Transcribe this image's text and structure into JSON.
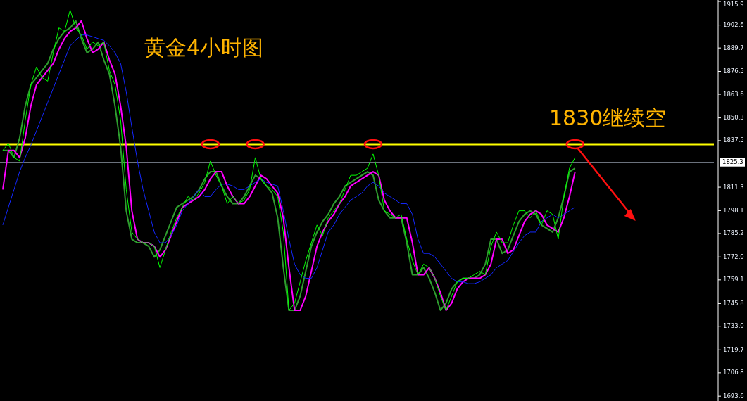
{
  "chart_data": {
    "type": "line",
    "categories": [
      null,
      null,
      null,
      null,
      null,
      null,
      null,
      null,
      null,
      null,
      null,
      null,
      null,
      null,
      null,
      null,
      null,
      null,
      null,
      null,
      null,
      null,
      null,
      null,
      null,
      null,
      null,
      null,
      null,
      null,
      null,
      null,
      null,
      null,
      null,
      null,
      null,
      null,
      null,
      null,
      null,
      null,
      null,
      null,
      null,
      null,
      null,
      null,
      null,
      null,
      null,
      null,
      null,
      null,
      null,
      null,
      null,
      null,
      null,
      null,
      null,
      null,
      null,
      null,
      null,
      null,
      null,
      null,
      null,
      null,
      null,
      null,
      null,
      null,
      null,
      null,
      null,
      null,
      null,
      null,
      null,
      null,
      null,
      null,
      null,
      null,
      null,
      null,
      null,
      null,
      null,
      null,
      null,
      null,
      null,
      null,
      null,
      null,
      null,
      null,
      null,
      null,
      null
    ],
    "series": [
      {
        "color": "#00ff00",
        "values": [
          1832,
          1836,
          1828,
          1826,
          1849,
          1869,
          1879,
          1873,
          1871,
          1887,
          1901,
          1899,
          1911,
          1901,
          1897,
          1889,
          1893,
          1891,
          1893,
          1877,
          1869,
          1849,
          1810,
          1786,
          1782,
          1780,
          1780,
          1778,
          1766,
          1776,
          1786,
          1794,
          1800,
          1806,
          1804,
          1808,
          1814,
          1826,
          1818,
          1812,
          1802,
          1806,
          1802,
          1804,
          1810,
          1828,
          1816,
          1812,
          1810,
          1806,
          1786,
          1742,
          1746,
          1758,
          1770,
          1780,
          1790,
          1784,
          1794,
          1798,
          1802,
          1810,
          1818,
          1818,
          1820,
          1822,
          1830,
          1818,
          1798,
          1796,
          1794,
          1796,
          1782,
          1770,
          1762,
          1768,
          1766,
          1760,
          1750,
          1742,
          1750,
          1758,
          1760,
          1760,
          1762,
          1764,
          1762,
          1778,
          1786,
          1780,
          1780,
          1790,
          1798,
          1798,
          1794,
          1798,
          1790,
          1798,
          1796,
          1782,
          1806,
          1822,
          1828
        ]
      },
      {
        "color": "#2e9e2e",
        "values": [
          1832,
          1832,
          1828,
          1839,
          1857,
          1869,
          1873,
          1877,
          1881,
          1889,
          1895,
          1899,
          1901,
          1905,
          1895,
          1887,
          1889,
          1893,
          1883,
          1875,
          1857,
          1834,
          1798,
          1782,
          1780,
          1780,
          1778,
          1772,
          1776,
          1784,
          1792,
          1800,
          1802,
          1804,
          1806,
          1810,
          1816,
          1820,
          1820,
          1812,
          1806,
          1802,
          1802,
          1806,
          1812,
          1818,
          1816,
          1812,
          1808,
          1794,
          1766,
          1742,
          1742,
          1750,
          1764,
          1778,
          1786,
          1792,
          1796,
          1802,
          1806,
          1812,
          1814,
          1816,
          1818,
          1820,
          1818,
          1804,
          1798,
          1794,
          1794,
          1794,
          1780,
          1762,
          1762,
          1766,
          1760,
          1752,
          1742,
          1746,
          1754,
          1758,
          1760,
          1760,
          1760,
          1762,
          1768,
          1782,
          1782,
          1774,
          1776,
          1784,
          1792,
          1796,
          1798,
          1796,
          1790,
          1788,
          1786,
          1794,
          1806,
          1820,
          1822
        ]
      },
      {
        "color": "#ff00ff",
        "values": [
          1810,
          1832,
          1832,
          1828,
          1839,
          1857,
          1869,
          1873,
          1877,
          1881,
          1889,
          1895,
          1899,
          1901,
          1905,
          1895,
          1887,
          1889,
          1893,
          1883,
          1875,
          1857,
          1834,
          1798,
          1782,
          1780,
          1780,
          1778,
          1772,
          1776,
          1784,
          1792,
          1800,
          1802,
          1804,
          1806,
          1810,
          1816,
          1820,
          1820,
          1812,
          1806,
          1802,
          1802,
          1806,
          1812,
          1818,
          1816,
          1812,
          1808,
          1794,
          1766,
          1742,
          1742,
          1750,
          1764,
          1778,
          1786,
          1792,
          1796,
          1802,
          1806,
          1812,
          1814,
          1816,
          1818,
          1820,
          1818,
          1804,
          1798,
          1794,
          1794,
          1794,
          1780,
          1762,
          1762,
          1766,
          1760,
          1752,
          1742,
          1746,
          1754,
          1758,
          1760,
          1760,
          1760,
          1762,
          1768,
          1782,
          1782,
          1774,
          1776,
          1784,
          1792,
          1796,
          1798,
          1796,
          1790,
          1788,
          1786,
          1794,
          1806,
          1820
        ]
      },
      {
        "color": "#1428ff",
        "values": [
          1790,
          1800,
          1810,
          1820,
          1828,
          1835,
          1843,
          1851,
          1859,
          1867,
          1875,
          1883,
          1891,
          1894,
          1897,
          1897,
          1896,
          1895,
          1894,
          1891,
          1887,
          1881,
          1865,
          1845,
          1826,
          1810,
          1798,
          1786,
          1780,
          1780,
          1784,
          1790,
          1798,
          1802,
          1806,
          1810,
          1806,
          1806,
          1810,
          1813,
          1813,
          1812,
          1810,
          1810,
          1812,
          1814,
          1816,
          1814,
          1813,
          1812,
          1798,
          1782,
          1768,
          1762,
          1760,
          1760,
          1766,
          1776,
          1786,
          1790,
          1796,
          1800,
          1804,
          1806,
          1808,
          1812,
          1814,
          1812,
          1808,
          1806,
          1804,
          1802,
          1802,
          1796,
          1782,
          1774,
          1774,
          1772,
          1768,
          1764,
          1760,
          1758,
          1758,
          1757,
          1757,
          1758,
          1760,
          1762,
          1766,
          1768,
          1770,
          1775,
          1780,
          1784,
          1786,
          1786,
          1792,
          1794,
          1796,
          1794,
          1796,
          1798,
          1800
        ]
      }
    ],
    "ylim": [
      1690.9,
      1916.7
    ],
    "yticks": [
      1915.9,
      1902.6,
      1889.7,
      1876.5,
      1863.6,
      1850.3,
      1837.5,
      1811.3,
      1798.1,
      1785.2,
      {
        "value": 1772,
        "label": "1772.0"
      },
      1759.1,
      1745.8,
      {
        "value": 1733,
        "label": "1733.0"
      },
      1719.7,
      1706.8,
      1693.6
    ],
    "ref_lines": [
      {
        "axis": "y",
        "value": 1835.5,
        "color": "#ffff00"
      },
      {
        "axis": "y",
        "value": 1825.3,
        "label": "1825.3",
        "color": "#8a93a0"
      }
    ],
    "annotations": [
      "黄金4小时图",
      "1830继续空"
    ]
  }
}
